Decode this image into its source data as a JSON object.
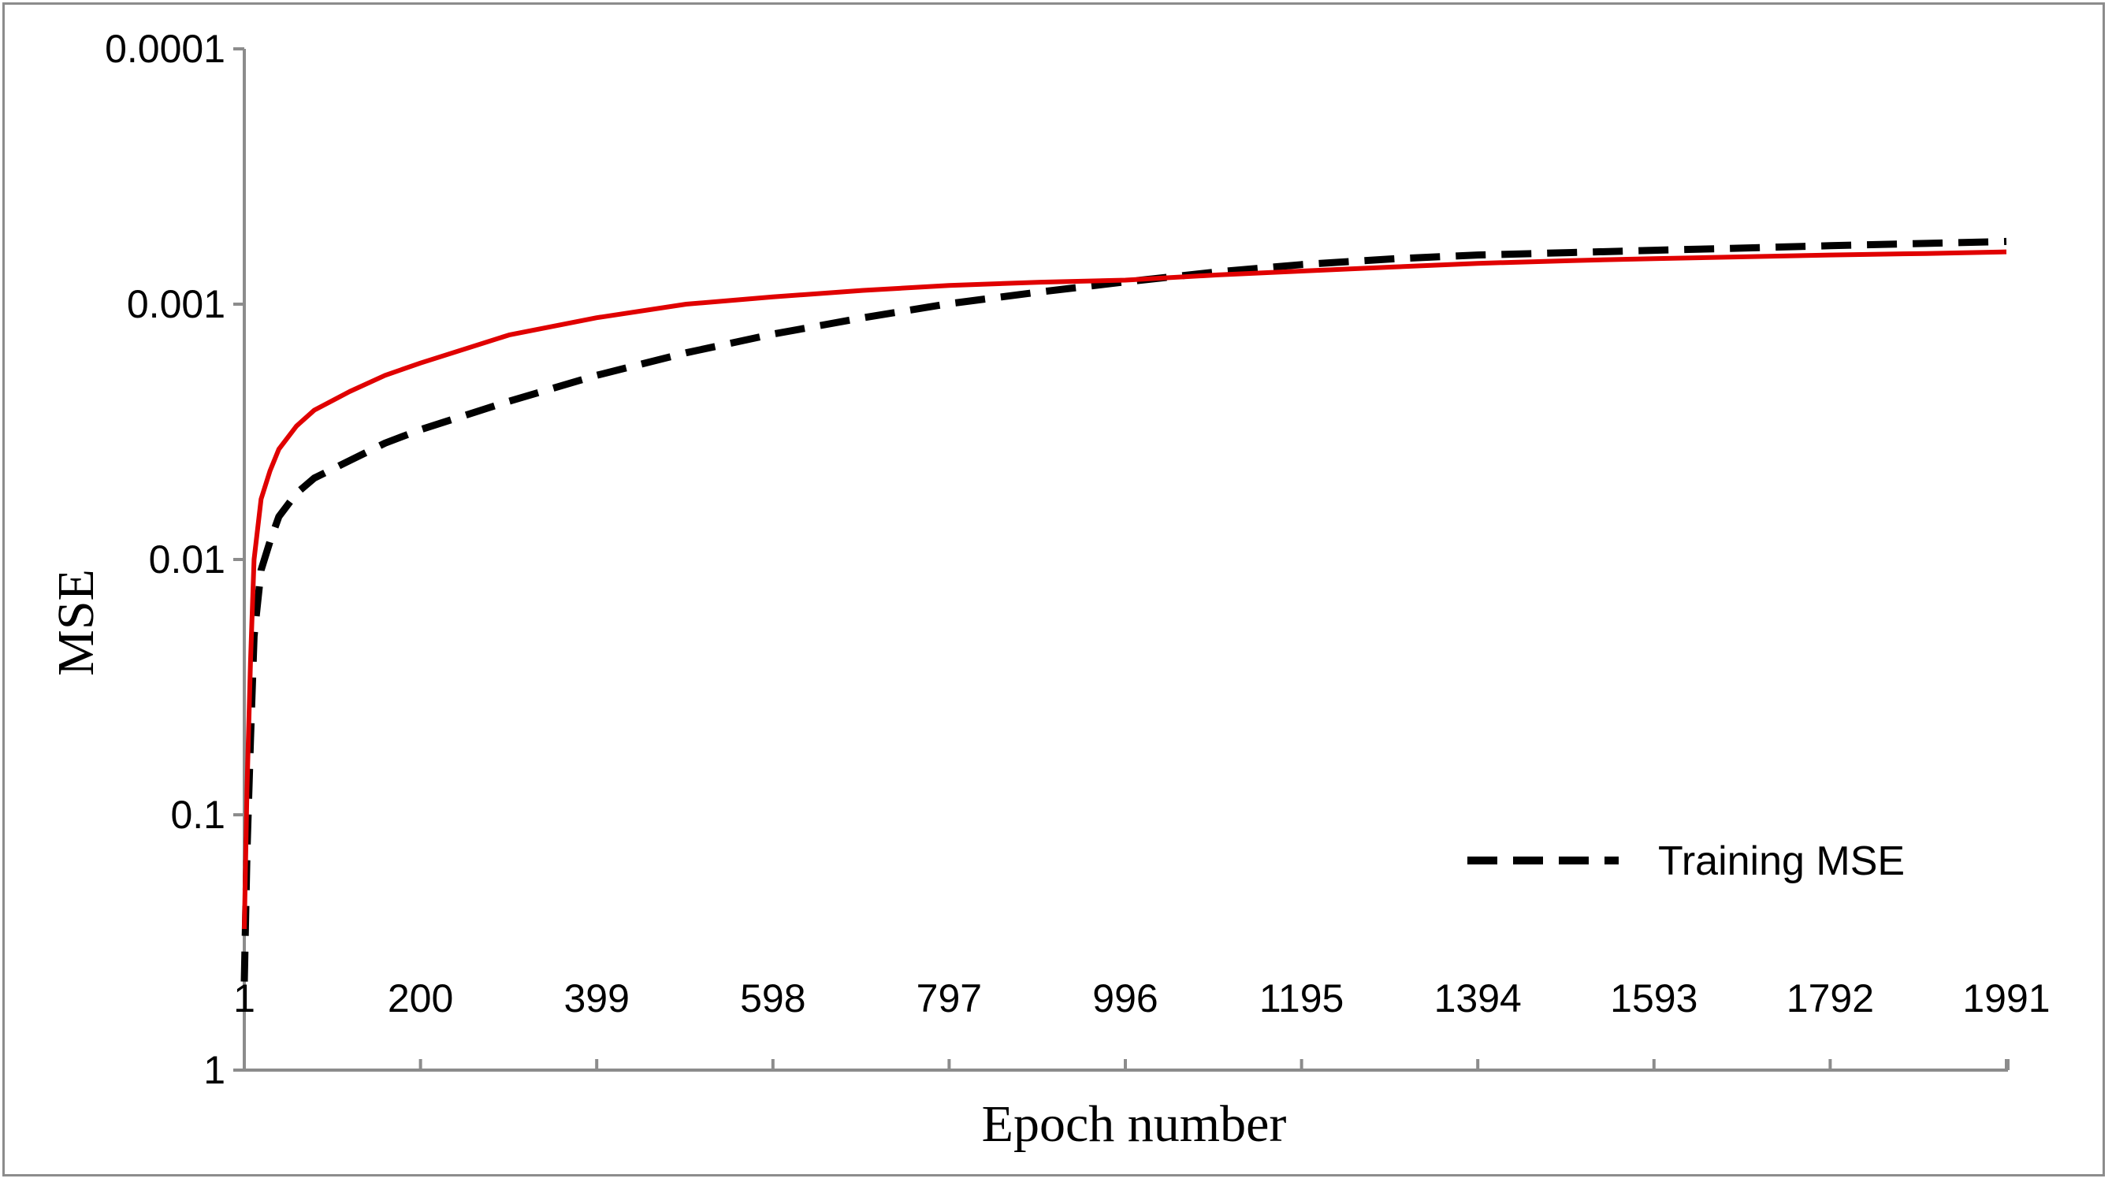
{
  "chart_data": {
    "type": "line",
    "xlabel": "Epoch number",
    "ylabel": "MSE",
    "y_scale": "log",
    "y_reversed": true,
    "ylim": [
      1,
      0.0001
    ],
    "xlim": [
      1,
      2000
    ],
    "x_ticks": [
      "1",
      "200",
      "399",
      "598",
      "797",
      "996",
      "1195",
      "1394",
      "1593",
      "1792",
      "1991"
    ],
    "y_ticks": [
      "0.0001",
      "0.001",
      "0.01",
      "0.1",
      "1"
    ],
    "grid": false,
    "legend_position": "bottom-right",
    "series": [
      {
        "name": "Training MSE",
        "style": "dashed",
        "color": "#000000",
        "x": [
          1,
          4,
          8,
          12,
          20,
          30,
          40,
          60,
          80,
          120,
          160,
          200,
          300,
          399,
          500,
          598,
          700,
          797,
          900,
          996,
          1100,
          1195,
          1300,
          1394,
          1500,
          1593,
          1700,
          1792,
          1900,
          1991
        ],
        "y": [
          0.45,
          0.14,
          0.05,
          0.02,
          0.011,
          0.0085,
          0.0068,
          0.0055,
          0.0048,
          0.0041,
          0.0035,
          0.0031,
          0.0024,
          0.0019,
          0.00155,
          0.00131,
          0.00113,
          0.000996,
          0.000895,
          0.000818,
          0.000747,
          0.0007,
          0.000664,
          0.000642,
          0.000628,
          0.000615,
          0.000602,
          0.00059,
          0.000578,
          0.000568
        ]
      },
      {
        "color": "#e00000",
        "style": "solid",
        "x": [
          1,
          4,
          8,
          12,
          20,
          30,
          40,
          60,
          80,
          120,
          160,
          200,
          300,
          399,
          500,
          598,
          700,
          797,
          900,
          996,
          1100,
          1195,
          1300,
          1394,
          1500,
          1593,
          1700,
          1792,
          1900,
          1991
        ],
        "y": [
          0.28,
          0.08,
          0.025,
          0.01,
          0.0058,
          0.0045,
          0.0037,
          0.003,
          0.0026,
          0.0022,
          0.0019,
          0.0017,
          0.00132,
          0.00113,
          0.001,
          0.000937,
          0.000883,
          0.000845,
          0.00082,
          0.000805,
          0.000768,
          0.000742,
          0.000715,
          0.000692,
          0.000675,
          0.000663,
          0.000652,
          0.000642,
          0.000633,
          0.000624
        ]
      }
    ]
  }
}
